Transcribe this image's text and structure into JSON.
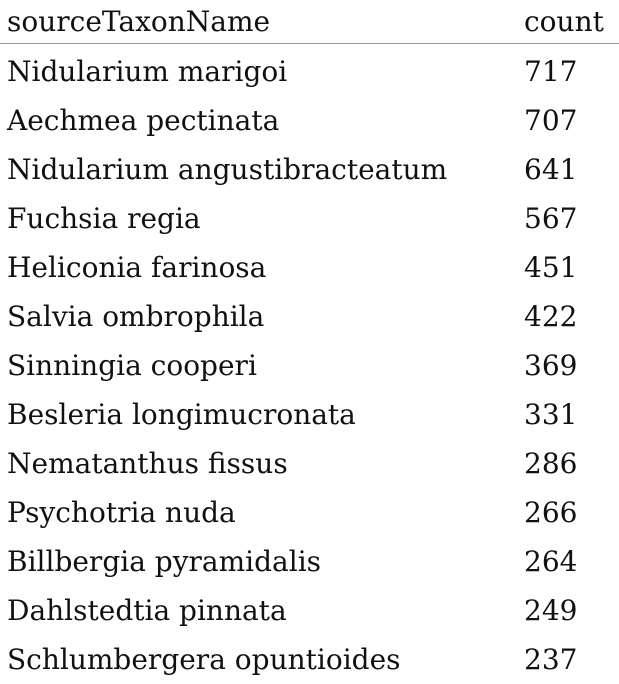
{
  "table": {
    "columns": [
      "sourceTaxonName",
      "count"
    ],
    "rows": [
      {
        "name": "Nidularium marigoi",
        "count": "717"
      },
      {
        "name": "Aechmea pectinata",
        "count": "707"
      },
      {
        "name": "Nidularium angustibracteatum",
        "count": "641"
      },
      {
        "name": "Fuchsia regia",
        "count": "567"
      },
      {
        "name": "Heliconia farinosa",
        "count": "451"
      },
      {
        "name": "Salvia ombrophila",
        "count": "422"
      },
      {
        "name": "Sinningia cooperi",
        "count": "369"
      },
      {
        "name": "Besleria longimucronata",
        "count": "331"
      },
      {
        "name": "Nematanthus fissus",
        "count": "286"
      },
      {
        "name": "Psychotria nuda",
        "count": "266"
      },
      {
        "name": "Billbergia pyramidalis",
        "count": "264"
      },
      {
        "name": "Dahlstedtia pinnata",
        "count": "249"
      },
      {
        "name": "Schlumbergera opuntioides",
        "count": "237"
      }
    ]
  }
}
